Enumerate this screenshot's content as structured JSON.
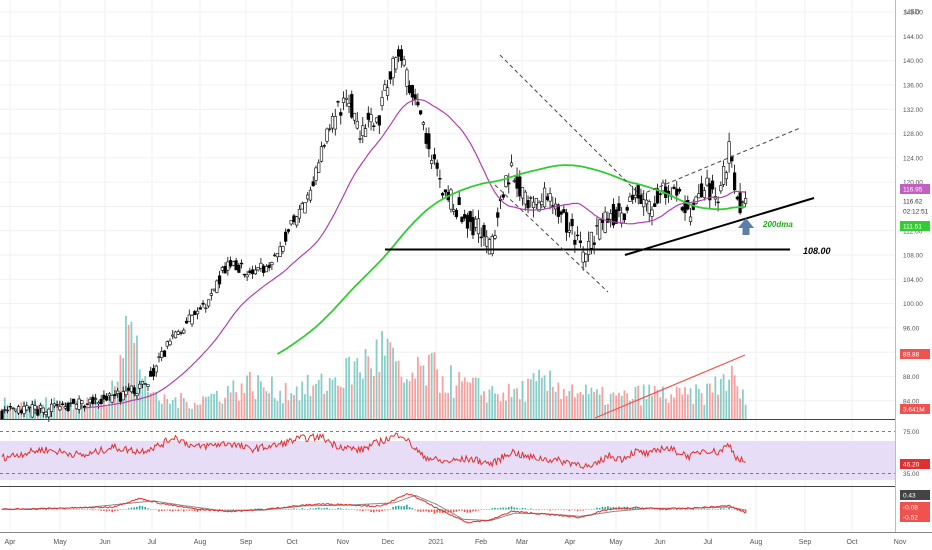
{
  "currency": "USD",
  "colors": {
    "up": "#26a69a",
    "down": "#ef5350",
    "candle": "#000000",
    "ma50": "#b040b0",
    "ma200": "#33cc33",
    "rsi": "#e03030",
    "rsi_band": "#e8ddf7",
    "macd_line": "#e03030",
    "signal_line": "#888888",
    "trend": "#000000",
    "arrow": "#5a7fa8",
    "grid": "#f0f0f0"
  },
  "chart_data": [
    {
      "type": "candlestick",
      "title": "",
      "y_axis": {
        "ticks": [
          "148.00",
          "144.00",
          "140.00",
          "136.00",
          "132.00",
          "128.00",
          "124.00",
          "120.00",
          "116.00",
          "112.00",
          "108.00",
          "104.00",
          "100.00",
          "96.00",
          "92.00",
          "88.00",
          "84.00"
        ],
        "range": [
          81,
          150
        ]
      },
      "x_axis": {
        "ticks": [
          "Apr",
          "May",
          "Jun",
          "Jul",
          "Aug",
          "Sep",
          "Oct",
          "Nov",
          "Dec",
          "2021",
          "Feb",
          "Mar",
          "Apr",
          "May",
          "Jun",
          "Jul",
          "Aug",
          "Sep",
          "Oct",
          "Nov"
        ]
      },
      "annotations": {
        "support_level": "108.00",
        "ma_label": "200dma"
      },
      "price_labels": [
        {
          "text": "116.95",
          "color": "#c060c0"
        },
        {
          "text": "116.62",
          "color": "#333333"
        },
        {
          "text": "02:12:51",
          "color": "#333333"
        },
        {
          "text": "111.51",
          "color": "#33cc33"
        },
        {
          "text": "89.88",
          "color": "#ef5350"
        },
        {
          "text": "3.641M",
          "color": "#ef5350"
        }
      ],
      "close_anchors": [
        [
          0,
          82
        ],
        [
          28,
          82.5
        ],
        [
          50,
          83
        ],
        [
          70,
          84
        ],
        [
          90,
          85
        ],
        [
          105,
          87
        ],
        [
          115,
          91
        ],
        [
          125,
          95
        ],
        [
          135,
          97
        ],
        [
          145,
          99
        ],
        [
          155,
          103
        ],
        [
          165,
          107
        ],
        [
          172,
          106
        ],
        [
          180,
          105
        ],
        [
          190,
          106
        ],
        [
          200,
          108
        ],
        [
          210,
          113
        ],
        [
          222,
          117
        ],
        [
          228,
          122
        ],
        [
          236,
          128
        ],
        [
          244,
          132
        ],
        [
          252,
          134
        ],
        [
          260,
          128
        ],
        [
          266,
          130
        ],
        [
          274,
          131
        ],
        [
          280,
          136
        ],
        [
          288,
          142
        ],
        [
          296,
          135
        ],
        [
          304,
          130
        ],
        [
          312,
          124
        ],
        [
          320,
          119
        ],
        [
          330,
          116
        ],
        [
          340,
          113
        ],
        [
          348,
          112
        ],
        [
          355,
          109
        ],
        [
          362,
          118
        ],
        [
          370,
          122
        ],
        [
          378,
          118
        ],
        [
          386,
          115
        ],
        [
          394,
          118
        ],
        [
          402,
          116
        ],
        [
          410,
          113
        ],
        [
          418,
          110
        ],
        [
          424,
          108
        ],
        [
          430,
          111
        ],
        [
          440,
          114
        ],
        [
          450,
          115
        ],
        [
          460,
          118
        ],
        [
          470,
          116
        ],
        [
          480,
          119
        ],
        [
          490,
          118
        ],
        [
          500,
          115
        ],
        [
          510,
          120
        ],
        [
          520,
          117
        ],
        [
          528,
          125
        ],
        [
          534,
          117
        ],
        [
          540,
          116
        ]
      ],
      "volume_anchors": [
        [
          0,
          1.0
        ],
        [
          30,
          0.9
        ],
        [
          60,
          1.0
        ],
        [
          75,
          0.8
        ],
        [
          90,
          5.5
        ],
        [
          110,
          1.1
        ],
        [
          140,
          1.0
        ],
        [
          160,
          1.5
        ],
        [
          180,
          2.0
        ],
        [
          200,
          1.6
        ],
        [
          230,
          1.8
        ],
        [
          250,
          2.6
        ],
        [
          265,
          3.2
        ],
        [
          280,
          4.0
        ],
        [
          290,
          2.0
        ],
        [
          310,
          2.8
        ],
        [
          330,
          2.0
        ],
        [
          350,
          1.6
        ],
        [
          370,
          1.4
        ],
        [
          390,
          2.0
        ],
        [
          410,
          1.8
        ],
        [
          430,
          1.3
        ],
        [
          450,
          1.2
        ],
        [
          470,
          1.5
        ],
        [
          490,
          1.3
        ],
        [
          510,
          1.4
        ],
        [
          528,
          2.5
        ],
        [
          540,
          1.0
        ]
      ],
      "volume_max": 6.0,
      "rsi": {
        "ticks": [
          "75.00",
          "35.00"
        ],
        "current": "46.20",
        "range": [
          25,
          85
        ],
        "anchors": [
          [
            0,
            50
          ],
          [
            30,
            58
          ],
          [
            60,
            52
          ],
          [
            80,
            60
          ],
          [
            100,
            56
          ],
          [
            115,
            62
          ],
          [
            125,
            70
          ],
          [
            140,
            60
          ],
          [
            165,
            64
          ],
          [
            180,
            58
          ],
          [
            200,
            62
          ],
          [
            215,
            68
          ],
          [
            232,
            70
          ],
          [
            242,
            62
          ],
          [
            260,
            57
          ],
          [
            270,
            63
          ],
          [
            290,
            73
          ],
          [
            296,
            64
          ],
          [
            305,
            52
          ],
          [
            320,
            46
          ],
          [
            340,
            49
          ],
          [
            356,
            44
          ],
          [
            370,
            56
          ],
          [
            380,
            51
          ],
          [
            400,
            48
          ],
          [
            420,
            44
          ],
          [
            428,
            40
          ],
          [
            440,
            52
          ],
          [
            450,
            49
          ],
          [
            460,
            56
          ],
          [
            470,
            53
          ],
          [
            480,
            60
          ],
          [
            490,
            56
          ],
          [
            500,
            51
          ],
          [
            510,
            58
          ],
          [
            520,
            55
          ],
          [
            528,
            63
          ],
          [
            534,
            49
          ],
          [
            540,
            46
          ]
        ]
      },
      "macd": {
        "labels": [
          "0.43",
          "-0.08",
          "-0.52"
        ],
        "range": [
          -3.5,
          3.5
        ],
        "macd_anchors": [
          [
            0,
            0
          ],
          [
            40,
            0.2
          ],
          [
            80,
            0.4
          ],
          [
            100,
            1.8
          ],
          [
            115,
            1.0
          ],
          [
            140,
            0.1
          ],
          [
            165,
            -0.3
          ],
          [
            190,
            0.0
          ],
          [
            210,
            0.5
          ],
          [
            230,
            0.9
          ],
          [
            250,
            0.8
          ],
          [
            275,
            0.5
          ],
          [
            295,
            2.6
          ],
          [
            305,
            1.5
          ],
          [
            320,
            -0.3
          ],
          [
            338,
            -2.1
          ],
          [
            355,
            -1.7
          ],
          [
            370,
            -0.3
          ],
          [
            385,
            -0.6
          ],
          [
            402,
            -0.9
          ],
          [
            420,
            -1.3
          ],
          [
            440,
            0.0
          ],
          [
            460,
            0.3
          ],
          [
            480,
            0.1
          ],
          [
            500,
            0.2
          ],
          [
            528,
            0.6
          ],
          [
            540,
            -0.5
          ]
        ],
        "signal_anchors": [
          [
            0,
            0
          ],
          [
            60,
            0.3
          ],
          [
            110,
            1.4
          ],
          [
            130,
            0.7
          ],
          [
            160,
            -0.2
          ],
          [
            190,
            -0.1
          ],
          [
            220,
            0.6
          ],
          [
            250,
            0.7
          ],
          [
            285,
            1.1
          ],
          [
            300,
            2.3
          ],
          [
            315,
            0.9
          ],
          [
            335,
            -1.6
          ],
          [
            355,
            -1.8
          ],
          [
            372,
            -0.6
          ],
          [
            395,
            -0.7
          ],
          [
            420,
            -1.1
          ],
          [
            445,
            -0.3
          ],
          [
            470,
            0.2
          ],
          [
            500,
            0.2
          ],
          [
            528,
            0.4
          ],
          [
            540,
            -0.08
          ]
        ]
      }
    }
  ]
}
